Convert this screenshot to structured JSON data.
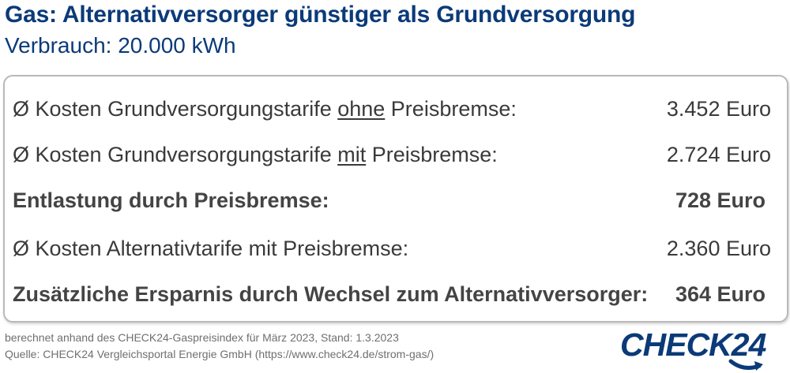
{
  "header": {
    "title": "Gas: Alternativversorger günstiger als Grundversorgung",
    "subtitle": "Verbrauch: 20.000 kWh"
  },
  "chart_data": {
    "type": "table",
    "title": "Gas: Alternativversorger günstiger als Grundversorgung",
    "subtitle": "Verbrauch: 20.000 kWh",
    "unit": "Euro",
    "rows": [
      {
        "label_pre": "Ø Kosten Grundversorgungstarife ",
        "label_emph": "ohne",
        "label_post": " Preisbremse:",
        "value": "3.452 Euro",
        "number": 3452,
        "bold": false
      },
      {
        "label_pre": "Ø Kosten Grundversorgungstarife ",
        "label_emph": "mit",
        "label_post": " Preisbremse:",
        "value": "2.724 Euro",
        "number": 2724,
        "bold": false
      },
      {
        "label_pre": "Entlastung durch Preisbremse:",
        "label_emph": "",
        "label_post": "",
        "value": "728 Euro",
        "number": 728,
        "bold": true
      },
      {
        "label_pre": "Ø Kosten Alternativtarife mit Preisbremse:",
        "label_emph": "",
        "label_post": "",
        "value": "2.360 Euro",
        "number": 2360,
        "bold": false
      },
      {
        "label_pre": "Zusätzliche Ersparnis durch Wechsel zum Alternativversorger:",
        "label_emph": "",
        "label_post": "",
        "value": "364 Euro",
        "number": 364,
        "bold": true
      }
    ]
  },
  "footer": {
    "note": "berechnet anhand des CHECK24-Gaspreisindex für März 2023, Stand: 1.3.2023",
    "source": "Quelle: CHECK24 Vergleichsportal Energie GmbH (https://www.check24.de/strom-gas/)"
  },
  "logo": {
    "text": "CHECK24",
    "icon": "check24-swoosh-icon"
  },
  "colors": {
    "brand_blue": "#0b3a78",
    "text": "#3a3a3a",
    "border": "#b9b9b9",
    "footer_text": "#6f6f6f"
  }
}
